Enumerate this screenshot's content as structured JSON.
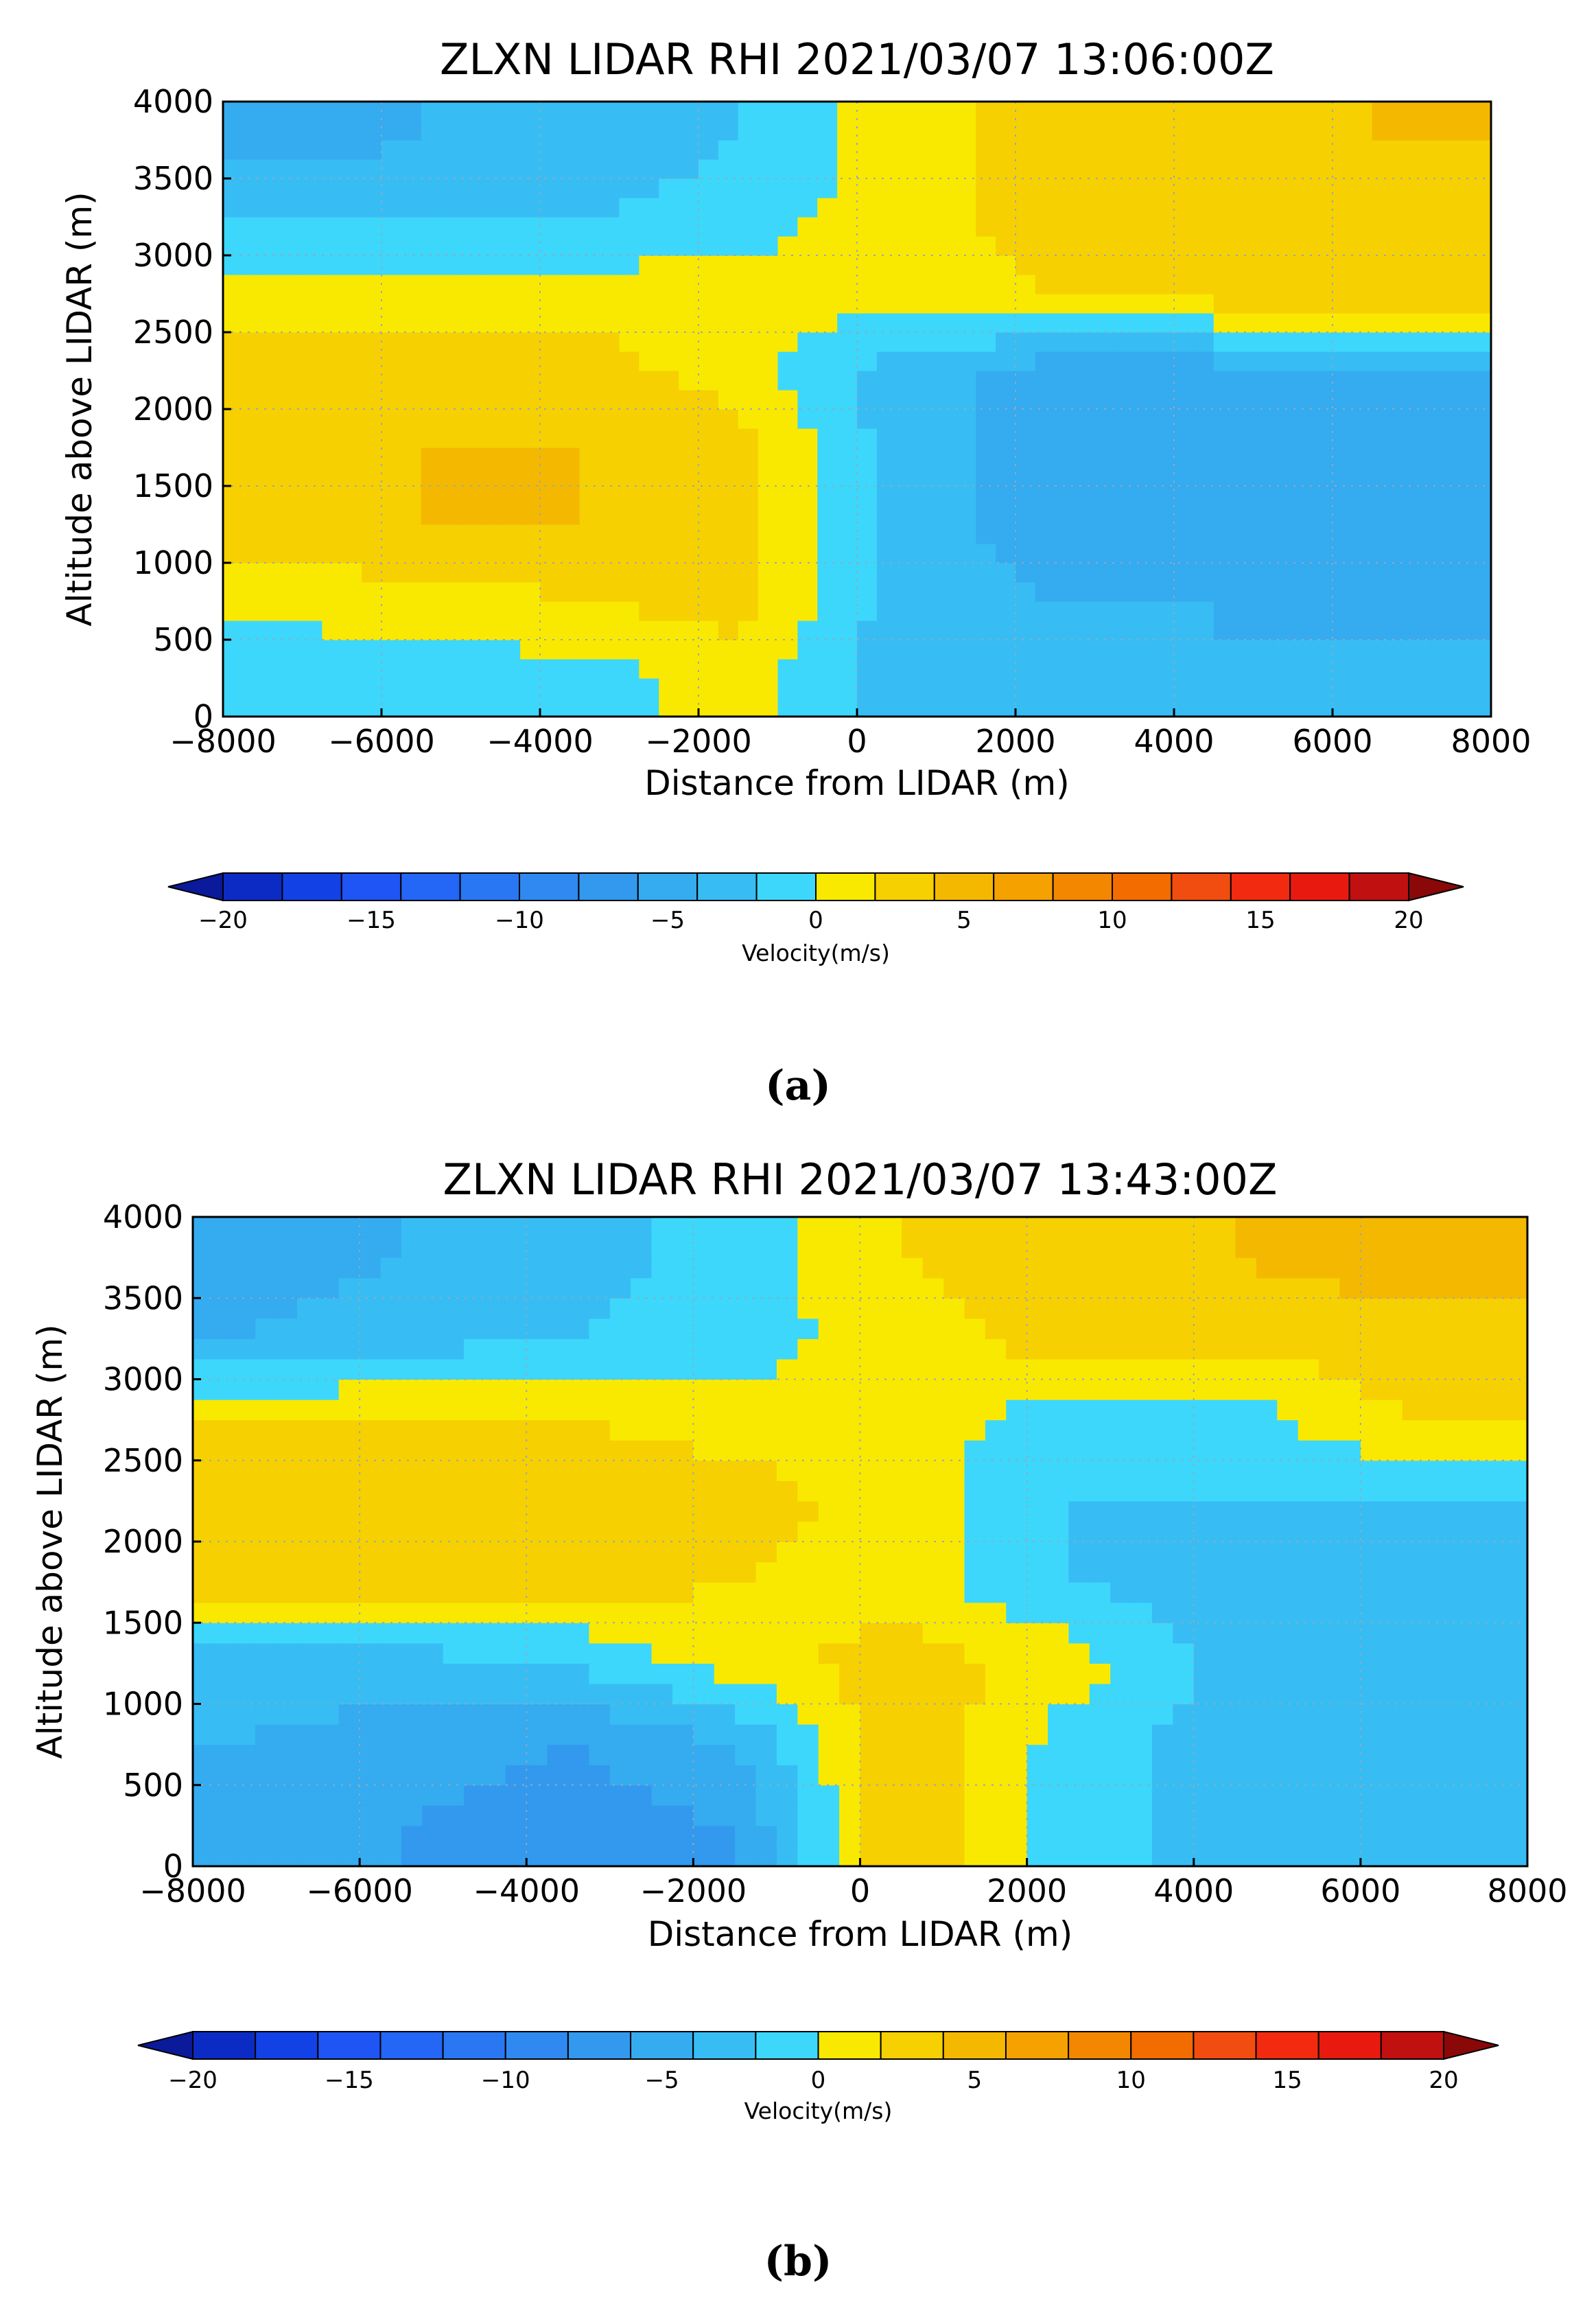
{
  "colorscale": {
    "label": "Velocity(m/s)",
    "levels": [
      -20,
      -18,
      -16,
      -14,
      -12,
      -10,
      -8,
      -6,
      -4,
      -2,
      0,
      2,
      4,
      6,
      8,
      10,
      12,
      14,
      16,
      18,
      20
    ],
    "tick_labels": [
      "−20",
      "−15",
      "−10",
      "−5",
      "0",
      "5",
      "10",
      "15",
      "20"
    ],
    "tick_values": [
      -20,
      -15,
      -10,
      -5,
      0,
      5,
      10,
      15,
      20
    ],
    "colors": [
      "#0c2bc4",
      "#1242e6",
      "#1f55f4",
      "#2466f5",
      "#2a77f3",
      "#2f89f0",
      "#3299ee",
      "#35abf0",
      "#37bdf4",
      "#3dd7fb",
      "#f9e900",
      "#f6d000",
      "#f5b800",
      "#f5a200",
      "#f38700",
      "#f26c00",
      "#f24d10",
      "#f22a10",
      "#e81a10",
      "#c01010"
    ],
    "under_color": "#0a1a9a",
    "over_color": "#8a0808"
  },
  "chart_data": [
    {
      "type": "heatmap",
      "title": "ZLXN LIDAR RHI 2021/03/07 13:06:00Z",
      "xlabel": "Distance from LIDAR (m)",
      "ylabel": "Altitude above LIDAR (m)",
      "xlim": [
        -8000,
        8000
      ],
      "ylim": [
        0,
        4000
      ],
      "xticks": [
        "−8000",
        "−6000",
        "−4000",
        "−2000",
        "0",
        "2000",
        "4000",
        "6000",
        "8000"
      ],
      "xtick_values": [
        -8000,
        -6000,
        -4000,
        -2000,
        0,
        2000,
        4000,
        6000,
        8000
      ],
      "yticks": [
        "0",
        "500",
        "1000",
        "1500",
        "2000",
        "2500",
        "3000",
        "3500",
        "4000"
      ],
      "ytick_values": [
        0,
        500,
        1000,
        1500,
        2000,
        2500,
        3000,
        3500,
        4000
      ],
      "grid": true,
      "caption": "(a)",
      "z_units": "m/s",
      "x_values": [
        -7500,
        -5500,
        -3500,
        -1500,
        500,
        2500,
        4500,
        6500
      ],
      "y_values": [
        250,
        750,
        1250,
        1750,
        2250,
        2750,
        3250,
        3750
      ],
      "z": [
        [
          -2,
          -1,
          -1,
          1,
          -3,
          -4,
          -4,
          -3
        ],
        [
          1,
          1,
          2,
          3,
          -3,
          -4,
          -4,
          -5
        ],
        [
          3,
          4,
          4,
          3,
          -3,
          -5,
          -5,
          -6
        ],
        [
          4,
          4,
          4,
          3,
          -3,
          -5,
          -6,
          -6
        ],
        [
          3,
          3,
          3,
          1,
          -3,
          -5,
          -5,
          -4
        ],
        [
          1,
          1,
          1,
          1,
          1,
          2,
          3,
          3
        ],
        [
          -2,
          -2,
          -2,
          -1,
          1,
          3,
          4,
          3
        ],
        [
          -5,
          -4,
          -4,
          -2,
          1,
          3,
          3,
          4
        ]
      ]
    },
    {
      "type": "heatmap",
      "title": "ZLXN LIDAR RHI 2021/03/07 13:43:00Z",
      "xlabel": "Distance from LIDAR (m)",
      "ylabel": "Altitude above LIDAR (m)",
      "xlim": [
        -8000,
        8000
      ],
      "ylim": [
        0,
        4000
      ],
      "xticks": [
        "−8000",
        "−6000",
        "−4000",
        "−2000",
        "0",
        "2000",
        "4000",
        "6000",
        "8000"
      ],
      "xtick_values": [
        -8000,
        -6000,
        -4000,
        -2000,
        0,
        2000,
        4000,
        6000,
        8000
      ],
      "yticks": [
        "0",
        "500",
        "1000",
        "1500",
        "2000",
        "2500",
        "3000",
        "3500",
        "4000"
      ],
      "ytick_values": [
        0,
        500,
        1000,
        1500,
        2000,
        2500,
        3000,
        3500,
        4000
      ],
      "grid": true,
      "caption": "(b)",
      "z_units": "m/s",
      "x_values": [
        -7500,
        -5500,
        -3500,
        -1500,
        500,
        2500,
        4500,
        6500
      ],
      "y_values": [
        250,
        750,
        1250,
        1750,
        2250,
        2750,
        3250,
        3750
      ],
      "z": [
        [
          -5,
          -6,
          -7,
          -6,
          4,
          -1,
          -3,
          -3
        ],
        [
          -4,
          -5,
          -6,
          -4,
          4,
          -1,
          -3,
          -3
        ],
        [
          -3,
          -3,
          -2,
          1,
          3,
          1,
          -3,
          -3
        ],
        [
          3,
          3,
          3,
          2,
          1,
          -2,
          -3,
          -3
        ],
        [
          4,
          4,
          4,
          3,
          1,
          -2,
          -2,
          -2
        ],
        [
          2,
          2,
          2,
          1,
          1,
          -1,
          -1,
          2
        ],
        [
          -4,
          -3,
          -2,
          -1,
          1,
          3,
          3,
          3
        ],
        [
          -5,
          -4,
          -3,
          -1,
          2,
          3,
          4,
          5
        ]
      ]
    }
  ]
}
